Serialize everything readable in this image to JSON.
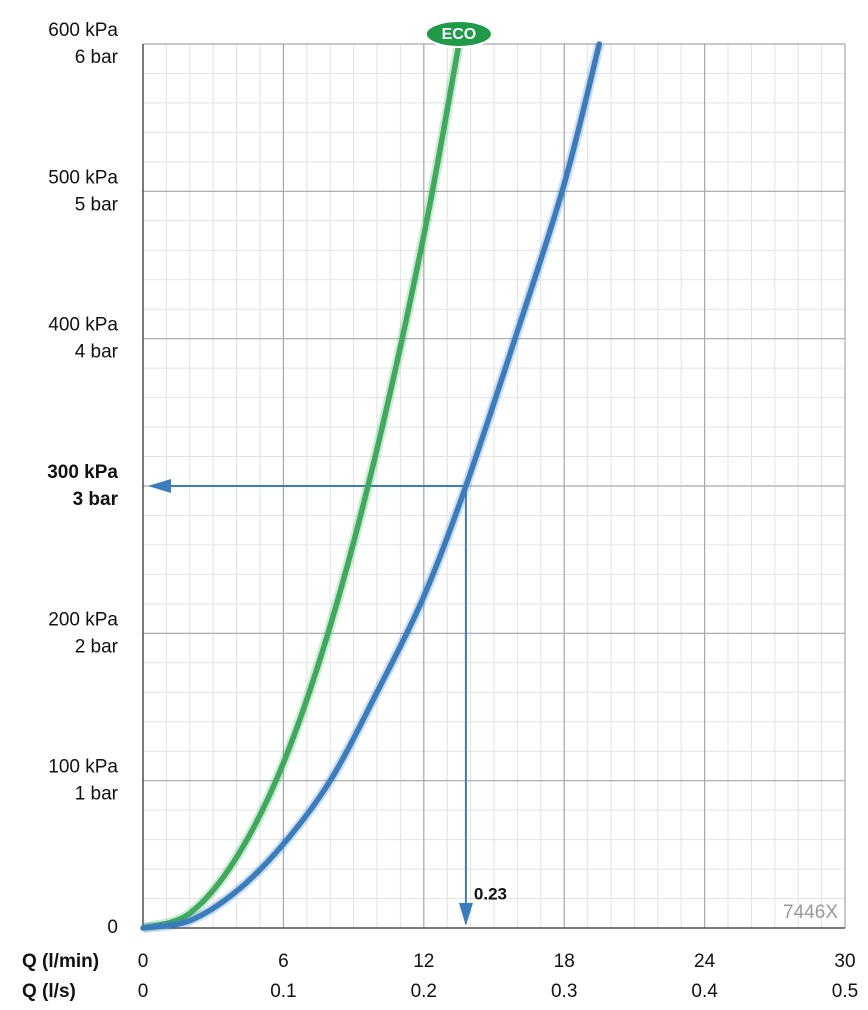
{
  "chart_data": {
    "type": "line",
    "xlabel": "Q (l/min)",
    "x2label": "Q (l/s)",
    "xlim": [
      0,
      30
    ],
    "xticks": [
      0,
      6,
      12,
      18,
      24,
      30
    ],
    "x2lim": [
      0,
      0.5
    ],
    "x2ticks": [
      0,
      0.1,
      0.2,
      0.3,
      0.4,
      0.5
    ],
    "ylim": [
      0,
      600
    ],
    "yticks": [
      0,
      {
        "value": 100,
        "label": "100 kPa"
      },
      {
        "value": 200,
        "label": "200 kPa"
      },
      {
        "value": 300,
        "label": "300 kPa"
      },
      {
        "value": 400,
        "label": "400 kPa"
      },
      {
        "value": 500,
        "label": "500 kPa"
      },
      {
        "value": 600,
        "label": "600 kPa"
      }
    ],
    "ytick_bar_labels": [
      "1 bar",
      "2 bar",
      "3 bar",
      "4 bar",
      "5 bar",
      "6 bar"
    ],
    "grid": true,
    "minor_grid": {
      "x": 1,
      "y": 20
    },
    "series": [
      {
        "name": "ECO",
        "color": "#3daa5c",
        "x": [
          0,
          2,
          4,
          6,
          8,
          10,
          12,
          13.5
        ],
        "values": [
          0,
          10,
          48,
          112,
          205,
          325,
          470,
          600
        ]
      },
      {
        "color": "#3a7dbf",
        "x": [
          0,
          2,
          4,
          6,
          8,
          10,
          12,
          13.8,
          16,
          18,
          19.5
        ],
        "values": [
          0,
          5,
          25,
          57,
          100,
          160,
          225,
          300,
          405,
          505,
          600
        ]
      }
    ],
    "annotation": {
      "x": 13.8,
      "y": 300,
      "text": "0.23"
    },
    "watermark": "7446X"
  }
}
